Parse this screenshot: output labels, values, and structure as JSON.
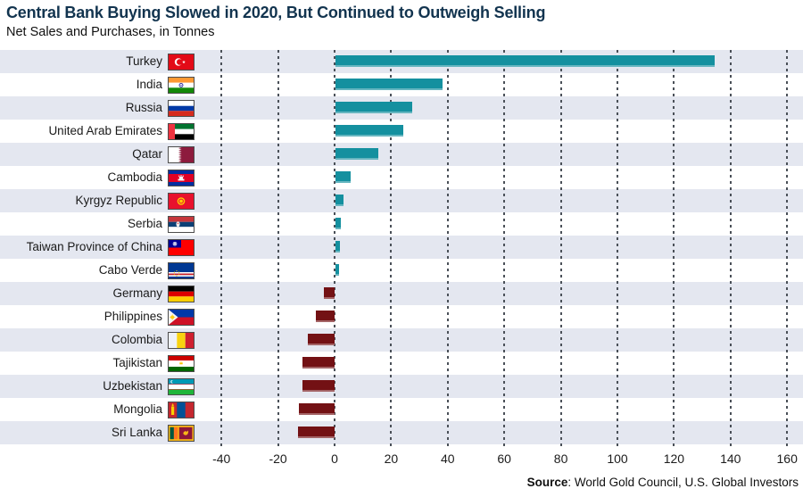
{
  "header": {
    "title": "Central Bank Buying Slowed in 2020, But Continued to Outweigh Selling",
    "subtitle": "Net Sales and Purchases, in Tonnes"
  },
  "chart_data": {
    "type": "bar",
    "orientation": "horizontal",
    "unit": "tonnes",
    "title": "Central Bank Buying Slowed in 2020, But Continued to Outweigh Selling",
    "subtitle": "Net Sales and Purchases, in Tonnes",
    "categories": [
      "Turkey",
      "India",
      "Russia",
      "United Arab Emirates",
      "Qatar",
      "Cambodia",
      "Kyrgyz Republic",
      "Serbia",
      "Taiwan Province of China",
      "Cabo Verde",
      "Germany",
      "Philippines",
      "Colombia",
      "Tajikistan",
      "Uzbekistan",
      "Mongolia",
      "Sri Lanka"
    ],
    "values": [
      134,
      38,
      27,
      24,
      15,
      5.3,
      2.7,
      2,
      1.7,
      1.2,
      -3.9,
      -6.6,
      -9.4,
      -11.2,
      -11.5,
      -12.5,
      -12.9
    ],
    "flag_icons": [
      "turkey-flag-icon",
      "india-flag-icon",
      "russia-flag-icon",
      "uae-flag-icon",
      "qatar-flag-icon",
      "cambodia-flag-icon",
      "kyrgyz-republic-flag-icon",
      "serbia-flag-icon",
      "taiwan-flag-icon",
      "cabo-verde-flag-icon",
      "germany-flag-icon",
      "philippines-flag-icon",
      "colombia-flag-icon",
      "tajikistan-flag-icon",
      "uzbekistan-flag-icon",
      "mongolia-flag-icon",
      "sri-lanka-flag-icon"
    ],
    "x_ticks": [
      -40,
      -20,
      0,
      20,
      40,
      60,
      80,
      100,
      120,
      140,
      160
    ],
    "xlim": [
      -42,
      166
    ],
    "grid": "dashed-vertical",
    "legend": "none",
    "positive_color": "#14909f",
    "negative_color": "#731114",
    "row_stripe_color": "#e4e7f0",
    "title_color": "#12344f",
    "gridline_color": "#4a5058"
  },
  "footer": {
    "source_label": "Source",
    "source_text": ": World Gold Council, U.S. Global Investors"
  }
}
